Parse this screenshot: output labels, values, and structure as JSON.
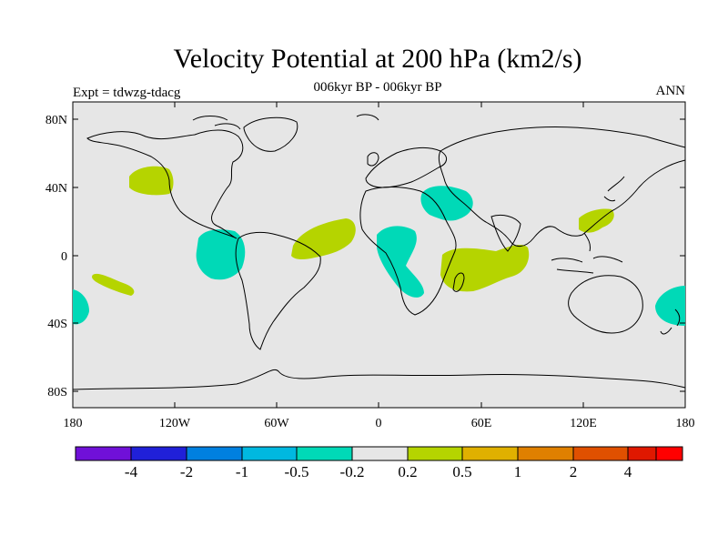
{
  "title": "Velocity Potential at 200 hPa (km2/s)",
  "subtitle": "006kyr BP - 006kyr BP",
  "experiment": "Expt = tdwzg-tdacg",
  "period": "ANN",
  "colors": {
    "ocean": "#e6e6e6",
    "positive_green": "#b5d400",
    "negative_teal": "#00d9b7"
  },
  "y_axis_labels": [
    "80N",
    "40N",
    "0",
    "40S",
    "80S"
  ],
  "x_axis_labels": [
    "180",
    "120W",
    "60W",
    "0",
    "60E",
    "120E",
    "180"
  ],
  "colorbar": {
    "colors": [
      "#7010d8",
      "#2020d8",
      "#0080e0",
      "#00b8e0",
      "#00d9b7",
      "#e6e6e6",
      "#b5d400",
      "#e0b000",
      "#e08000",
      "#e05000",
      "#e01800",
      "#ff0000"
    ],
    "labels": [
      "-4",
      "-2",
      "-1",
      "-0.5",
      "-0.2",
      "0.2",
      "0.5",
      "1",
      "2",
      "4"
    ]
  }
}
